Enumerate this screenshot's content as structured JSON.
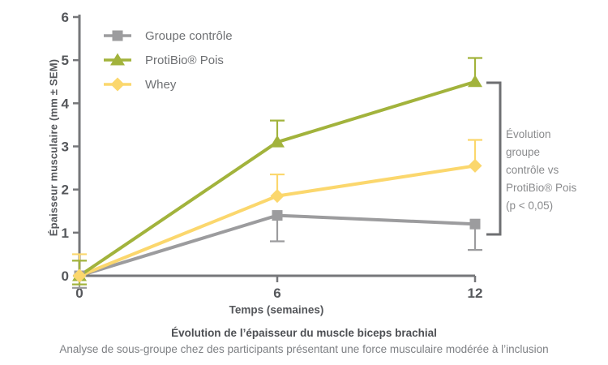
{
  "chart_data": {
    "type": "line",
    "x": [
      0,
      6,
      12
    ],
    "x_tick_labels": [
      "0",
      "6",
      "12"
    ],
    "y_ticks": [
      0,
      1,
      2,
      3,
      4,
      5,
      6
    ],
    "ylim": [
      0,
      6
    ],
    "xlabel": "Temps (semaines)",
    "ylabel": "Épaisseur musculaire (mm ± SEM)",
    "grid": false,
    "legend_position": "top-left-inside",
    "axis_color": "#76777a",
    "tick_label_color": "#55575b",
    "legend_text_color": "#6f7174",
    "series": [
      {
        "id": "controle",
        "name": "Groupe contrôle",
        "color": "#9c9c9e",
        "marker": "square",
        "values": [
          0,
          1.4,
          1.2
        ],
        "sem_up": [
          0,
          0,
          0
        ],
        "sem_down": [
          0.28,
          0.6,
          0.6
        ]
      },
      {
        "id": "protibio",
        "name": "ProtiBio® Pois",
        "color": "#a2b33c",
        "marker": "triangle",
        "values": [
          0,
          3.1,
          4.5
        ],
        "sem_up": [
          0.35,
          0.5,
          0.55
        ],
        "sem_down": [
          0.2,
          0,
          0
        ]
      },
      {
        "id": "whey",
        "name": "Whey",
        "color": "#fbd76d",
        "marker": "diamond",
        "values": [
          0,
          1.85,
          2.55
        ],
        "sem_up": [
          0.5,
          0.5,
          0.6
        ],
        "sem_down": [
          0,
          0,
          0
        ]
      }
    ]
  },
  "annotation": {
    "bracket_color": "#6e6f72",
    "text": "Évolution\ngroupe\ncontrôle vs\nProtiBio® Pois\n(p < 0,05)"
  },
  "caption": {
    "title": "Évolution de l’épaisseur du muscle biceps brachial",
    "subtitle": "Analyse de sous-groupe chez des participants présentant une force musculaire modérée à l’inclusion"
  }
}
